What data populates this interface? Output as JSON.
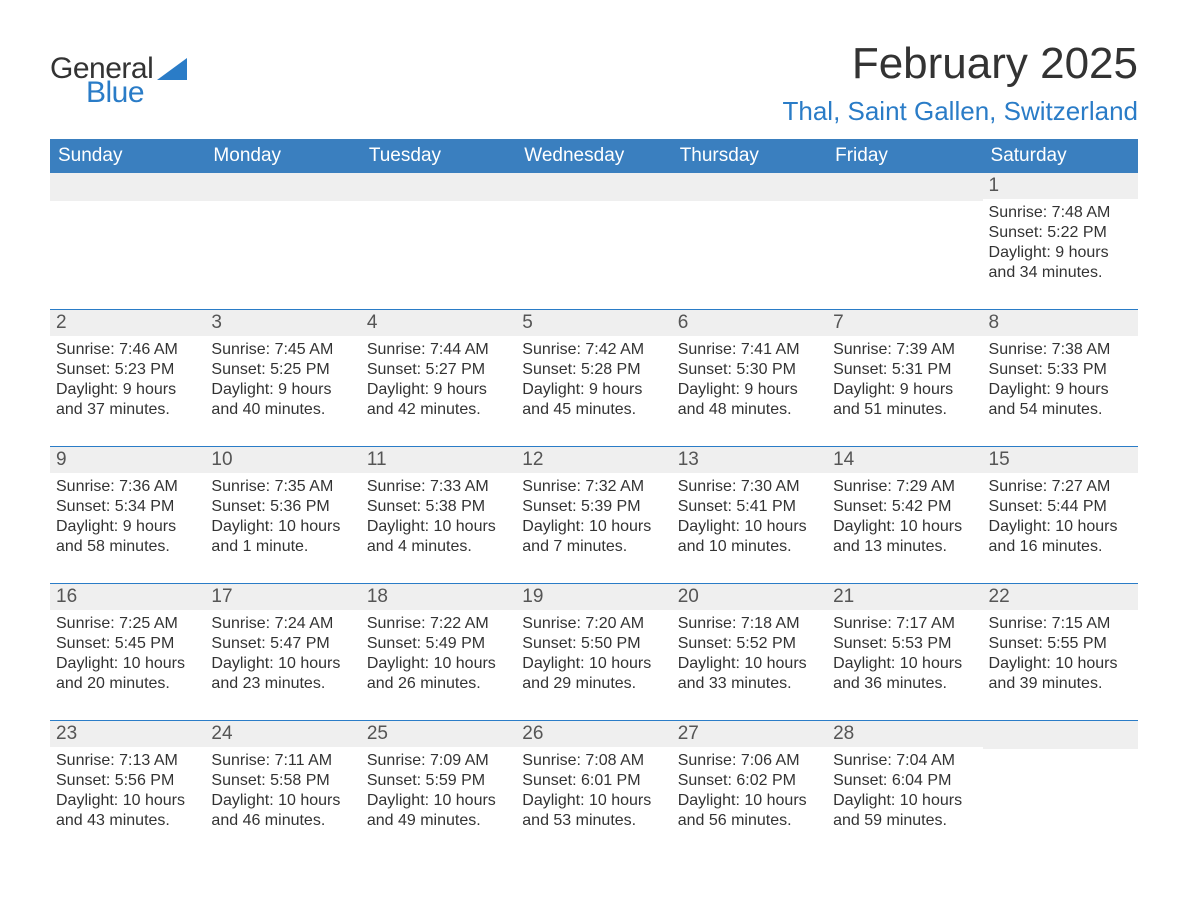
{
  "brand": {
    "part1": "General",
    "part2": "Blue"
  },
  "title": "February 2025",
  "location": "Thal, Saint Gallen, Switzerland",
  "colors": {
    "header_bg": "#3a7fbf",
    "accent_rule": "#2a7cc7",
    "daynum_bg": "#efefef",
    "text": "#333333"
  },
  "dow": [
    "Sunday",
    "Monday",
    "Tuesday",
    "Wednesday",
    "Thursday",
    "Friday",
    "Saturday"
  ],
  "weeks": [
    [
      {
        "empty": true
      },
      {
        "empty": true
      },
      {
        "empty": true
      },
      {
        "empty": true
      },
      {
        "empty": true
      },
      {
        "empty": true
      },
      {
        "n": "1",
        "sunrise": "Sunrise: 7:48 AM",
        "sunset": "Sunset: 5:22 PM",
        "day1": "Daylight: 9 hours",
        "day2": "and 34 minutes."
      }
    ],
    [
      {
        "n": "2",
        "sunrise": "Sunrise: 7:46 AM",
        "sunset": "Sunset: 5:23 PM",
        "day1": "Daylight: 9 hours",
        "day2": "and 37 minutes."
      },
      {
        "n": "3",
        "sunrise": "Sunrise: 7:45 AM",
        "sunset": "Sunset: 5:25 PM",
        "day1": "Daylight: 9 hours",
        "day2": "and 40 minutes."
      },
      {
        "n": "4",
        "sunrise": "Sunrise: 7:44 AM",
        "sunset": "Sunset: 5:27 PM",
        "day1": "Daylight: 9 hours",
        "day2": "and 42 minutes."
      },
      {
        "n": "5",
        "sunrise": "Sunrise: 7:42 AM",
        "sunset": "Sunset: 5:28 PM",
        "day1": "Daylight: 9 hours",
        "day2": "and 45 minutes."
      },
      {
        "n": "6",
        "sunrise": "Sunrise: 7:41 AM",
        "sunset": "Sunset: 5:30 PM",
        "day1": "Daylight: 9 hours",
        "day2": "and 48 minutes."
      },
      {
        "n": "7",
        "sunrise": "Sunrise: 7:39 AM",
        "sunset": "Sunset: 5:31 PM",
        "day1": "Daylight: 9 hours",
        "day2": "and 51 minutes."
      },
      {
        "n": "8",
        "sunrise": "Sunrise: 7:38 AM",
        "sunset": "Sunset: 5:33 PM",
        "day1": "Daylight: 9 hours",
        "day2": "and 54 minutes."
      }
    ],
    [
      {
        "n": "9",
        "sunrise": "Sunrise: 7:36 AM",
        "sunset": "Sunset: 5:34 PM",
        "day1": "Daylight: 9 hours",
        "day2": "and 58 minutes."
      },
      {
        "n": "10",
        "sunrise": "Sunrise: 7:35 AM",
        "sunset": "Sunset: 5:36 PM",
        "day1": "Daylight: 10 hours",
        "day2": "and 1 minute."
      },
      {
        "n": "11",
        "sunrise": "Sunrise: 7:33 AM",
        "sunset": "Sunset: 5:38 PM",
        "day1": "Daylight: 10 hours",
        "day2": "and 4 minutes."
      },
      {
        "n": "12",
        "sunrise": "Sunrise: 7:32 AM",
        "sunset": "Sunset: 5:39 PM",
        "day1": "Daylight: 10 hours",
        "day2": "and 7 minutes."
      },
      {
        "n": "13",
        "sunrise": "Sunrise: 7:30 AM",
        "sunset": "Sunset: 5:41 PM",
        "day1": "Daylight: 10 hours",
        "day2": "and 10 minutes."
      },
      {
        "n": "14",
        "sunrise": "Sunrise: 7:29 AM",
        "sunset": "Sunset: 5:42 PM",
        "day1": "Daylight: 10 hours",
        "day2": "and 13 minutes."
      },
      {
        "n": "15",
        "sunrise": "Sunrise: 7:27 AM",
        "sunset": "Sunset: 5:44 PM",
        "day1": "Daylight: 10 hours",
        "day2": "and 16 minutes."
      }
    ],
    [
      {
        "n": "16",
        "sunrise": "Sunrise: 7:25 AM",
        "sunset": "Sunset: 5:45 PM",
        "day1": "Daylight: 10 hours",
        "day2": "and 20 minutes."
      },
      {
        "n": "17",
        "sunrise": "Sunrise: 7:24 AM",
        "sunset": "Sunset: 5:47 PM",
        "day1": "Daylight: 10 hours",
        "day2": "and 23 minutes."
      },
      {
        "n": "18",
        "sunrise": "Sunrise: 7:22 AM",
        "sunset": "Sunset: 5:49 PM",
        "day1": "Daylight: 10 hours",
        "day2": "and 26 minutes."
      },
      {
        "n": "19",
        "sunrise": "Sunrise: 7:20 AM",
        "sunset": "Sunset: 5:50 PM",
        "day1": "Daylight: 10 hours",
        "day2": "and 29 minutes."
      },
      {
        "n": "20",
        "sunrise": "Sunrise: 7:18 AM",
        "sunset": "Sunset: 5:52 PM",
        "day1": "Daylight: 10 hours",
        "day2": "and 33 minutes."
      },
      {
        "n": "21",
        "sunrise": "Sunrise: 7:17 AM",
        "sunset": "Sunset: 5:53 PM",
        "day1": "Daylight: 10 hours",
        "day2": "and 36 minutes."
      },
      {
        "n": "22",
        "sunrise": "Sunrise: 7:15 AM",
        "sunset": "Sunset: 5:55 PM",
        "day1": "Daylight: 10 hours",
        "day2": "and 39 minutes."
      }
    ],
    [
      {
        "n": "23",
        "sunrise": "Sunrise: 7:13 AM",
        "sunset": "Sunset: 5:56 PM",
        "day1": "Daylight: 10 hours",
        "day2": "and 43 minutes."
      },
      {
        "n": "24",
        "sunrise": "Sunrise: 7:11 AM",
        "sunset": "Sunset: 5:58 PM",
        "day1": "Daylight: 10 hours",
        "day2": "and 46 minutes."
      },
      {
        "n": "25",
        "sunrise": "Sunrise: 7:09 AM",
        "sunset": "Sunset: 5:59 PM",
        "day1": "Daylight: 10 hours",
        "day2": "and 49 minutes."
      },
      {
        "n": "26",
        "sunrise": "Sunrise: 7:08 AM",
        "sunset": "Sunset: 6:01 PM",
        "day1": "Daylight: 10 hours",
        "day2": "and 53 minutes."
      },
      {
        "n": "27",
        "sunrise": "Sunrise: 7:06 AM",
        "sunset": "Sunset: 6:02 PM",
        "day1": "Daylight: 10 hours",
        "day2": "and 56 minutes."
      },
      {
        "n": "28",
        "sunrise": "Sunrise: 7:04 AM",
        "sunset": "Sunset: 6:04 PM",
        "day1": "Daylight: 10 hours",
        "day2": "and 59 minutes."
      },
      {
        "empty": true
      }
    ]
  ]
}
